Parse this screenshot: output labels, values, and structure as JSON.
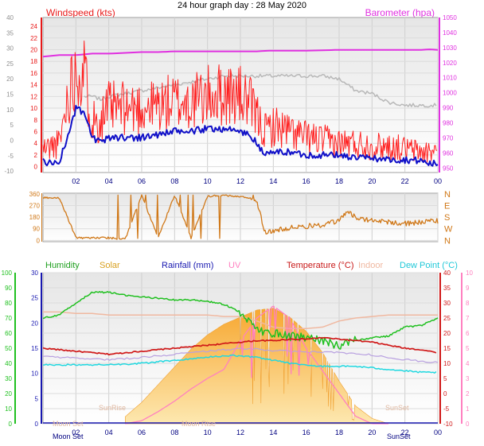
{
  "title": "24 hour graph day : 28 May 2020",
  "colors": {
    "wind": "#e81818",
    "gust": "#ff2020",
    "avg": "#1010c8",
    "baro": "#e030e0",
    "gray": "#b8b8b8",
    "dir": "#d07818",
    "humidity": "#20c020",
    "solar": "#f8b040",
    "rain": "#1818b0",
    "uv": "#ff80c0",
    "temp": "#d01818",
    "indoor": "#f0b8a0",
    "dew": "#20d8e0",
    "lavender": "#b8a0e0",
    "plotbg_top": "#eaeaea",
    "plotbg_bottom": "#ffffff"
  },
  "chart_data": [
    {
      "type": "line",
      "name": "wind-panel",
      "title": "24 hour graph day : 28 May 2020",
      "ylabel_left": "Windspeed (kts)",
      "ylabel_right": "Barometer (hpa)",
      "x_ticks": [
        "02",
        "04",
        "06",
        "08",
        "10",
        "12",
        "14",
        "16",
        "18",
        "20",
        "22",
        "00"
      ],
      "y_left_ticks": [
        0,
        2,
        4,
        6,
        8,
        10,
        12,
        14,
        16,
        18,
        20,
        22,
        24
      ],
      "y_left_lim": [
        -1,
        25.5
      ],
      "y_right_ticks": [
        950,
        960,
        970,
        980,
        990,
        1000,
        1010,
        1020,
        1030,
        1040,
        1050
      ],
      "y_right_lim": [
        947,
        1050
      ],
      "y_outer_ticks": [
        -10,
        -5,
        0,
        5,
        10,
        15,
        20,
        25,
        30,
        35,
        40
      ],
      "y_outer_lim": [
        -10.5,
        40
      ],
      "x": [
        0,
        0.5,
        1,
        1.5,
        2,
        2.5,
        3,
        3.5,
        4,
        5,
        6,
        7,
        8,
        9,
        10,
        11,
        12,
        12.5,
        13,
        13.5,
        14,
        15,
        16,
        17,
        18,
        19,
        20,
        21,
        22,
        23,
        23.5,
        24
      ],
      "series": [
        {
          "name": "Windspeed (kts)",
          "role": "gust",
          "values": [
            3,
            3.5,
            4,
            12,
            17,
            16,
            8,
            8,
            10,
            10,
            10,
            10.5,
            11,
            11,
            12,
            12.5,
            12,
            11,
            8.5,
            6,
            7,
            6,
            5,
            4.5,
            4,
            4,
            3.5,
            3.5,
            3,
            2.5,
            2.5,
            3
          ]
        },
        {
          "name": "avg",
          "role": "avg",
          "values": [
            1,
            0.5,
            1,
            5,
            10,
            9,
            5,
            4,
            5,
            5,
            5,
            5.5,
            6,
            6,
            6.5,
            6.5,
            6,
            5.5,
            4,
            2,
            2.5,
            2.5,
            2,
            2,
            2,
            1.5,
            1.5,
            1.2,
            1.2,
            1,
            0.5,
            0.5
          ]
        },
        {
          "name": "Barometer (hpa)",
          "role": "baro",
          "values": [
            1024,
            1024.5,
            1025,
            1025,
            1025,
            1025.5,
            1026,
            1026,
            1026,
            1026.5,
            1027,
            1027,
            1027.5,
            1027.5,
            1027.5,
            1027.5,
            1027.5,
            1027.5,
            1027.5,
            1027.8,
            1028,
            1028,
            1028,
            1028.2,
            1028.5,
            1028.5,
            1028.5,
            1028.5,
            1028.5,
            1028.5,
            1028.8,
            1028.5
          ]
        },
        {
          "role": "gray",
          "values": [
            null,
            null,
            null,
            12,
            12,
            12,
            12,
            11.5,
            12,
            12.5,
            13,
            13.5,
            14,
            14.5,
            15,
            15.5,
            15.5,
            15.5,
            15.5,
            15.5,
            15.5,
            15.5,
            15.5,
            15.5,
            15,
            13,
            12.5,
            11,
            10.5,
            10.5,
            10.5,
            10.5
          ]
        }
      ]
    },
    {
      "type": "line",
      "name": "direction-panel",
      "y_ticks": [
        0,
        90,
        180,
        270,
        360
      ],
      "y_lim": [
        -10,
        365
      ],
      "y_labels_right": [
        "N",
        "W",
        "S",
        "E",
        "N"
      ],
      "x_ticks": [
        "02",
        "04",
        "06",
        "08",
        "10",
        "12",
        "14",
        "16",
        "18",
        "20",
        "22",
        "00"
      ],
      "x": [
        0,
        1,
        2,
        3,
        4,
        5,
        6,
        7,
        8,
        9,
        10,
        11,
        12,
        12.5,
        13,
        13.5,
        14,
        15,
        16,
        17,
        18,
        18.5,
        19,
        20,
        21,
        22,
        23,
        24
      ],
      "values": [
        330,
        330,
        20,
        20,
        20,
        10,
        350,
        20,
        350,
        20,
        340,
        350,
        340,
        330,
        300,
        60,
        70,
        100,
        110,
        120,
        150,
        230,
        180,
        150,
        140,
        130,
        140,
        150
      ]
    },
    {
      "type": "line",
      "name": "climate-panel",
      "legend": [
        "Humidity",
        "Solar",
        "Rainfall (mm)",
        "UV",
        "Temperature (°C)",
        "Indoor",
        "Dew Point (°C)"
      ],
      "annotations": [
        "Moon Set",
        "SunRise",
        "Moon Rise",
        "SunSet",
        "Moon Set",
        "SunSet"
      ],
      "x_ticks": [
        "02",
        "04",
        "06",
        "08",
        "10",
        "12",
        "14",
        "16",
        "18",
        "20",
        "22",
        "00"
      ],
      "y_humidity_ticks": [
        0,
        10,
        20,
        30,
        40,
        50,
        60,
        70,
        80,
        90,
        100
      ],
      "y_rain_ticks": [
        0,
        5,
        10,
        15,
        20,
        25,
        30
      ],
      "y_temp_ticks": [
        -10,
        -5,
        0,
        5,
        10,
        15,
        20,
        25,
        30,
        35,
        40
      ],
      "y_uv_ticks": [
        0,
        1,
        2,
        3,
        4,
        5,
        6,
        7,
        8,
        9,
        10
      ],
      "x": [
        0,
        1,
        2,
        3,
        4,
        5,
        6,
        7,
        8,
        9,
        10,
        11,
        12,
        13,
        14,
        15,
        16,
        17,
        18,
        19,
        20,
        21,
        22,
        23,
        24
      ],
      "series": [
        {
          "name": "Humidity",
          "unit": "%",
          "values": [
            70,
            72,
            80,
            87,
            87,
            85,
            84,
            83,
            82,
            82,
            81,
            79,
            74,
            62,
            60,
            58,
            57,
            55,
            52,
            55,
            57,
            58,
            64,
            65,
            70
          ]
        },
        {
          "name": "Temperature (°C)",
          "unit": "°C",
          "values": [
            15,
            14.5,
            14,
            13.5,
            13,
            13.5,
            14,
            14.5,
            15,
            15.5,
            16,
            16.5,
            17,
            17.5,
            17.5,
            18,
            18,
            18.5,
            18,
            17.5,
            17,
            16,
            15,
            14.5,
            13.5
          ]
        },
        {
          "name": "Dew Point (°C)",
          "unit": "°C",
          "values": [
            9.5,
            9.5,
            9.5,
            9.5,
            9.5,
            9.7,
            10,
            10.5,
            11,
            11.5,
            12,
            12.5,
            12.5,
            12,
            11,
            10,
            9.5,
            9,
            9,
            9,
            8.5,
            8,
            7.5,
            7,
            7
          ]
        },
        {
          "name": "Indoor",
          "unit": "°C",
          "values": [
            27,
            27,
            26.5,
            26.5,
            26,
            26,
            26,
            26,
            26,
            26,
            26,
            25.5,
            25.5,
            24,
            22,
            21.5,
            21.5,
            22,
            24,
            25,
            25.5,
            26,
            26,
            26,
            26
          ]
        },
        {
          "name": "Solar",
          "unit": "W/m2",
          "values": [
            0,
            0,
            0,
            0,
            0,
            40,
            120,
            220,
            320,
            420,
            500,
            560,
            600,
            640,
            650,
            600,
            520,
            400,
            240,
            100,
            30,
            0,
            0,
            0,
            0
          ]
        },
        {
          "name": "UV",
          "unit": "index",
          "values": [
            0,
            0,
            0,
            0,
            0,
            0,
            0.2,
            0.8,
            1.5,
            2.3,
            3,
            3.6,
            5.5,
            7,
            7.8,
            7,
            5,
            3.5,
            2,
            0.5,
            0,
            0,
            0,
            0,
            0
          ]
        },
        {
          "name": "Rainfall (mm)",
          "unit": "mm",
          "values": [
            0,
            0,
            0,
            0,
            0,
            0,
            0,
            0,
            0,
            0,
            0,
            0,
            0,
            0,
            0,
            0,
            0,
            0,
            0,
            0,
            0,
            0,
            0,
            0,
            0
          ]
        }
      ]
    }
  ]
}
